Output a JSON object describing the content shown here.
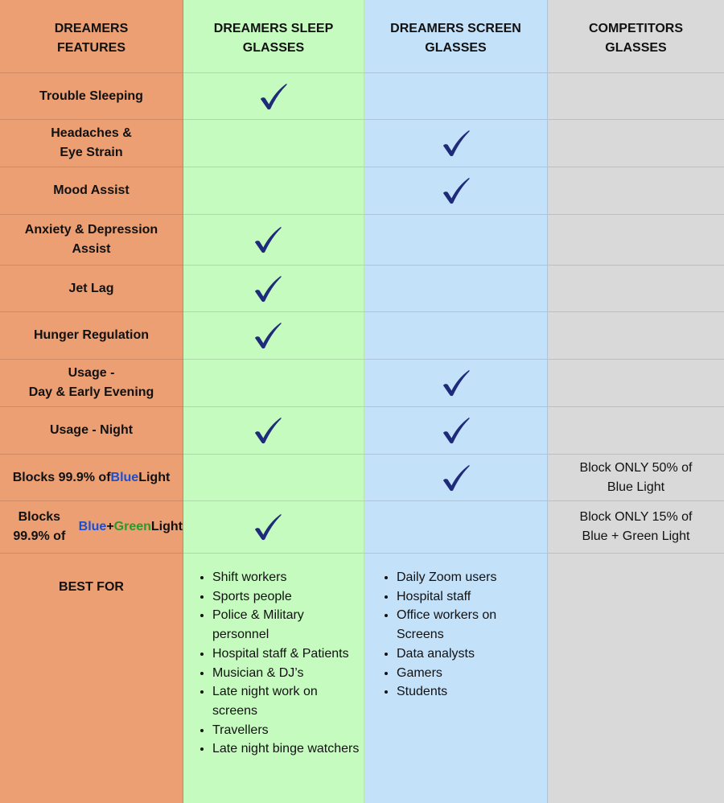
{
  "colors": {
    "features_col": "#EC9F72",
    "sleep_col": "#C6FBC0",
    "screen_col": "#C4E1FA",
    "competitor_col": "#D9D9D9",
    "check": "#1E2A7A",
    "blue_word": "#1A4FD0",
    "green_word": "#2A9A2A"
  },
  "headers": [
    "DREAMERS\nFEATURES",
    "DREAMERS SLEEP\nGLASSES",
    "DREAMERS SCREEN\nGLASSES",
    "COMPETITORS\nGLASSES"
  ],
  "rows": [
    {
      "feature": [
        {
          "text": "Trouble Sleeping"
        }
      ],
      "sleep": true,
      "screen": false,
      "competitor": ""
    },
    {
      "feature": [
        {
          "text": "Headaches &\nEye Strain"
        }
      ],
      "sleep": false,
      "screen": true,
      "competitor": ""
    },
    {
      "feature": [
        {
          "text": "Mood Assist"
        }
      ],
      "sleep": false,
      "screen": true,
      "competitor": ""
    },
    {
      "feature": [
        {
          "text": "Anxiety & Depression\nAssist"
        }
      ],
      "sleep": true,
      "screen": false,
      "competitor": ""
    },
    {
      "feature": [
        {
          "text": "Jet Lag"
        }
      ],
      "sleep": true,
      "screen": false,
      "competitor": ""
    },
    {
      "feature": [
        {
          "text": "Hunger Regulation"
        }
      ],
      "sleep": true,
      "screen": false,
      "competitor": ""
    },
    {
      "feature": [
        {
          "text": "Usage -\nDay & Early Evening"
        }
      ],
      "sleep": false,
      "screen": true,
      "competitor": ""
    },
    {
      "feature": [
        {
          "text": "Usage  - Night"
        }
      ],
      "sleep": true,
      "screen": true,
      "competitor": ""
    },
    {
      "feature": [
        {
          "text": "Blocks 99.9% of\n"
        },
        {
          "text": "Blue",
          "color": "blue"
        },
        {
          "text": " Light"
        }
      ],
      "sleep": false,
      "screen": true,
      "competitor": "Block ONLY 50% of\nBlue Light"
    },
    {
      "feature": [
        {
          "text": "Blocks 99.9% of\n"
        },
        {
          "text": "Blue",
          "color": "blue"
        },
        {
          "text": " + "
        },
        {
          "text": "Green",
          "color": "green"
        },
        {
          "text": " Light"
        }
      ],
      "sleep": true,
      "screen": false,
      "competitor": "Block ONLY 15% of\nBlue + Green Light"
    }
  ],
  "best_for": {
    "label": "BEST FOR",
    "sleep": [
      "Shift workers",
      "Sports people",
      "Police & Military personnel",
      "Hospital staff & Patients",
      "Musician & DJ’s",
      "Late night work on screens",
      "Travellers",
      "Late night binge watchers"
    ],
    "screen": [
      "Daily Zoom users",
      "Hospital staff",
      "Office workers on Screens",
      "Data analysts",
      "Gamers",
      "Students"
    ],
    "competitor": []
  }
}
